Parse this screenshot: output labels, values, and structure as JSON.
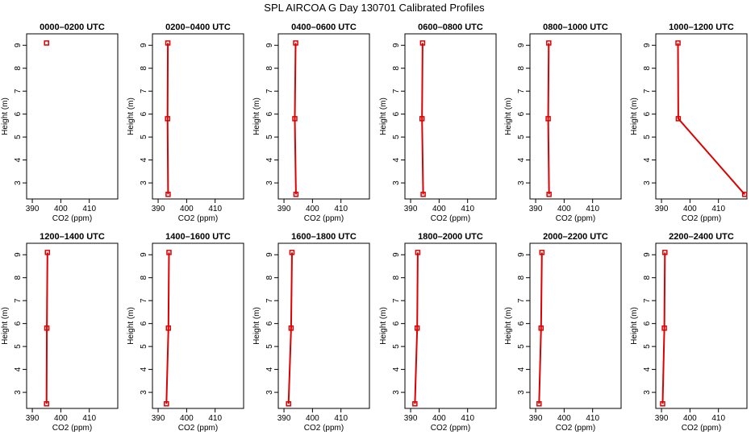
{
  "figure_title": "SPL AIRCOA G  Day 130701  Calibrated Profiles",
  "series_color": "#dd0000",
  "chart_data": [
    {
      "type": "line",
      "title": "0000–0200 UTC",
      "xlabel": "CO2 (ppm)",
      "ylabel": "Height (m)",
      "xlim": [
        388,
        420
      ],
      "ylim": [
        2.3,
        9.5
      ],
      "xticks": [
        390,
        400,
        410
      ],
      "yticks": [
        3,
        4,
        5,
        6,
        7,
        8,
        9
      ],
      "x": [
        395
      ],
      "y": [
        9.1
      ]
    },
    {
      "type": "line",
      "title": "0200–0400 UTC",
      "xlabel": "CO2 (ppm)",
      "ylabel": "Height (m)",
      "xlim": [
        388,
        420
      ],
      "ylim": [
        2.3,
        9.5
      ],
      "xticks": [
        390,
        400,
        410
      ],
      "yticks": [
        3,
        4,
        5,
        6,
        7,
        8,
        9
      ],
      "x": [
        393.4,
        393.3,
        393.5
      ],
      "y": [
        9.1,
        5.8,
        2.5
      ]
    },
    {
      "type": "line",
      "title": "0400–0600 UTC",
      "xlabel": "CO2 (ppm)",
      "ylabel": "Height (m)",
      "xlim": [
        388,
        420
      ],
      "ylim": [
        2.3,
        9.5
      ],
      "xticks": [
        390,
        400,
        410
      ],
      "yticks": [
        3,
        4,
        5,
        6,
        7,
        8,
        9
      ],
      "x": [
        394.1,
        393.8,
        394.2
      ],
      "y": [
        9.1,
        5.8,
        2.5
      ]
    },
    {
      "type": "line",
      "title": "0600–0800 UTC",
      "xlabel": "CO2 (ppm)",
      "ylabel": "Height (m)",
      "xlim": [
        388,
        420
      ],
      "ylim": [
        2.3,
        9.5
      ],
      "xticks": [
        390,
        400,
        410
      ],
      "yticks": [
        3,
        4,
        5,
        6,
        7,
        8,
        9
      ],
      "x": [
        394.2,
        394.0,
        394.4
      ],
      "y": [
        9.1,
        5.8,
        2.5
      ]
    },
    {
      "type": "line",
      "title": "0800–1000 UTC",
      "xlabel": "CO2 (ppm)",
      "ylabel": "Height (m)",
      "xlim": [
        388,
        420
      ],
      "ylim": [
        2.3,
        9.5
      ],
      "xticks": [
        390,
        400,
        410
      ],
      "yticks": [
        3,
        4,
        5,
        6,
        7,
        8,
        9
      ],
      "x": [
        394.6,
        394.4,
        394.7
      ],
      "y": [
        9.1,
        5.8,
        2.5
      ]
    },
    {
      "type": "line",
      "title": "1000–1200 UTC",
      "xlabel": "CO2 (ppm)",
      "ylabel": "Height (m)",
      "xlim": [
        388,
        420
      ],
      "ylim": [
        2.3,
        9.5
      ],
      "xticks": [
        390,
        400,
        410
      ],
      "yticks": [
        3,
        4,
        5,
        6,
        7,
        8,
        9
      ],
      "x": [
        395.8,
        395.9,
        419.2
      ],
      "y": [
        9.1,
        5.8,
        2.5
      ]
    },
    {
      "type": "line",
      "title": "1200–1400 UTC",
      "xlabel": "CO2 (ppm)",
      "ylabel": "Height (m)",
      "xlim": [
        388,
        420
      ],
      "ylim": [
        2.3,
        9.5
      ],
      "xticks": [
        390,
        400,
        410
      ],
      "yticks": [
        3,
        4,
        5,
        6,
        7,
        8,
        9
      ],
      "x": [
        395.3,
        395.1,
        395.0
      ],
      "y": [
        9.1,
        5.8,
        2.5
      ]
    },
    {
      "type": "line",
      "title": "1400–1600 UTC",
      "xlabel": "CO2 (ppm)",
      "ylabel": "Height (m)",
      "xlim": [
        388,
        420
      ],
      "ylim": [
        2.3,
        9.5
      ],
      "xticks": [
        390,
        400,
        410
      ],
      "yticks": [
        3,
        4,
        5,
        6,
        7,
        8,
        9
      ],
      "x": [
        393.8,
        393.6,
        392.9
      ],
      "y": [
        9.1,
        5.8,
        2.5
      ]
    },
    {
      "type": "line",
      "title": "1600–1800 UTC",
      "xlabel": "CO2 (ppm)",
      "ylabel": "Height (m)",
      "xlim": [
        388,
        420
      ],
      "ylim": [
        2.3,
        9.5
      ],
      "xticks": [
        390,
        400,
        410
      ],
      "yticks": [
        3,
        4,
        5,
        6,
        7,
        8,
        9
      ],
      "x": [
        392.8,
        392.5,
        391.6
      ],
      "y": [
        9.1,
        5.8,
        2.5
      ]
    },
    {
      "type": "line",
      "title": "1800–2000 UTC",
      "xlabel": "CO2 (ppm)",
      "ylabel": "Height (m)",
      "xlim": [
        388,
        420
      ],
      "ylim": [
        2.3,
        9.5
      ],
      "xticks": [
        390,
        400,
        410
      ],
      "yticks": [
        3,
        4,
        5,
        6,
        7,
        8,
        9
      ],
      "x": [
        392.5,
        392.3,
        391.5
      ],
      "y": [
        9.1,
        5.8,
        2.5
      ]
    },
    {
      "type": "line",
      "title": "2000–2200 UTC",
      "xlabel": "CO2 (ppm)",
      "ylabel": "Height (m)",
      "xlim": [
        388,
        420
      ],
      "ylim": [
        2.3,
        9.5
      ],
      "xticks": [
        390,
        400,
        410
      ],
      "yticks": [
        3,
        4,
        5,
        6,
        7,
        8,
        9
      ],
      "x": [
        392.2,
        391.9,
        391.2
      ],
      "y": [
        9.1,
        5.8,
        2.5
      ]
    },
    {
      "type": "line",
      "title": "2200–2400 UTC",
      "xlabel": "CO2 (ppm)",
      "ylabel": "Height (m)",
      "xlim": [
        388,
        420
      ],
      "ylim": [
        2.3,
        9.5
      ],
      "xticks": [
        390,
        400,
        410
      ],
      "yticks": [
        3,
        4,
        5,
        6,
        7,
        8,
        9
      ],
      "x": [
        391.2,
        391.0,
        390.4
      ],
      "y": [
        9.1,
        5.8,
        2.5
      ]
    }
  ]
}
